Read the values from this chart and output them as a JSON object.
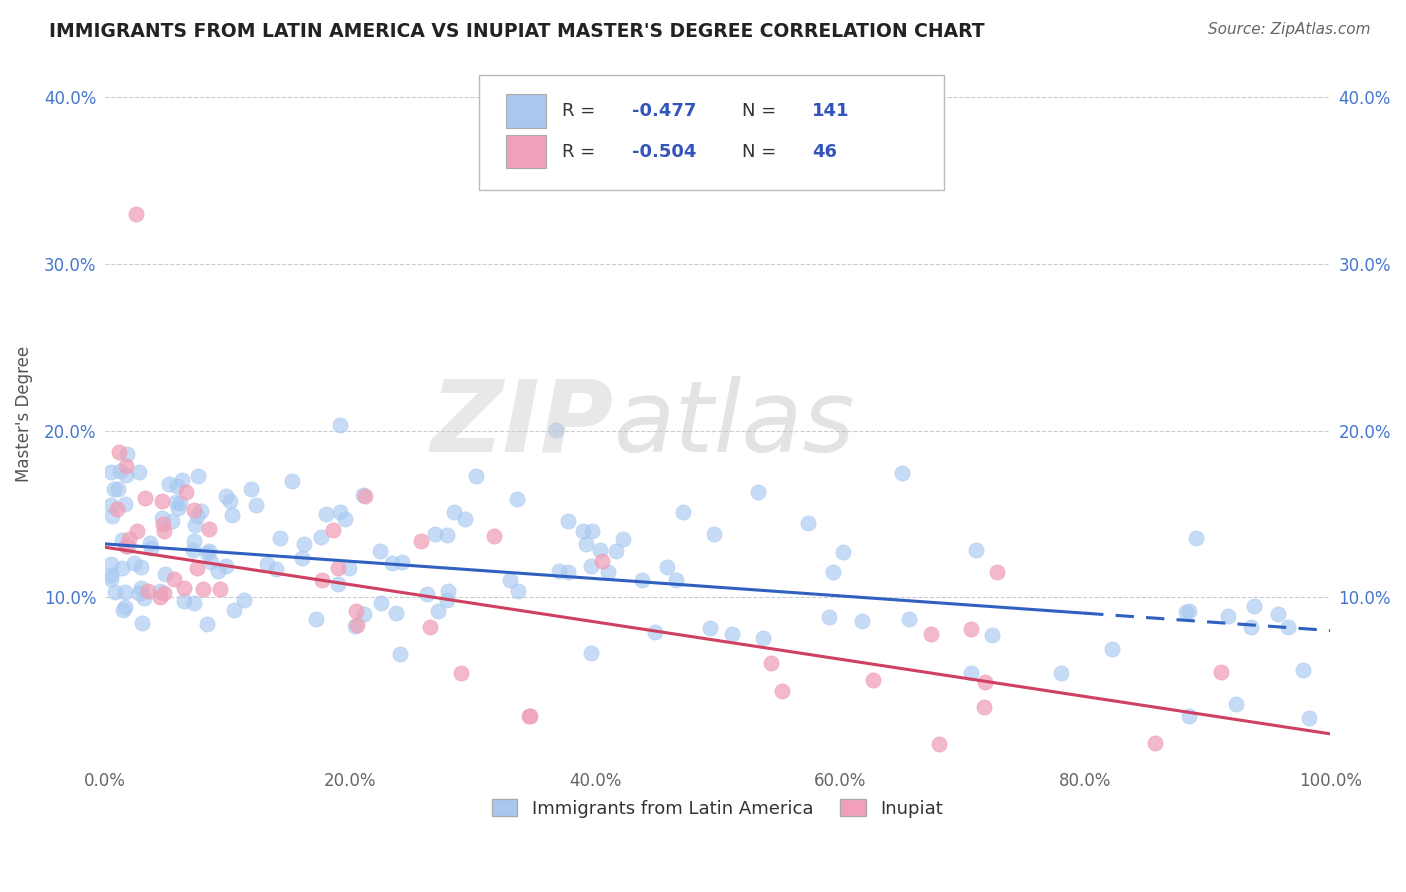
{
  "title": "IMMIGRANTS FROM LATIN AMERICA VS INUPIAT MASTER'S DEGREE CORRELATION CHART",
  "source_text": "Source: ZipAtlas.com",
  "ylabel": "Master's Degree",
  "xlim": [
    0,
    100
  ],
  "ylim": [
    0,
    42
  ],
  "yticks": [
    0,
    10,
    20,
    30,
    40
  ],
  "ytick_labels": [
    "",
    "10.0%",
    "20.0%",
    "30.0%",
    "40.0%"
  ],
  "xticks": [
    0,
    20,
    40,
    60,
    80,
    100
  ],
  "xtick_labels": [
    "0.0%",
    "20.0%",
    "40.0%",
    "60.0%",
    "80.0%",
    "100.0%"
  ],
  "blue_color": "#A8C8F0",
  "pink_color": "#F0A0B8",
  "blue_line_color": "#3060C0",
  "pink_line_color": "#D04060",
  "R_blue": -0.477,
  "N_blue": 141,
  "R_pink": -0.504,
  "N_pink": 46,
  "blue_intercept": 13.2,
  "blue_slope": -0.052,
  "blue_dash_start": 80,
  "pink_intercept": 13.0,
  "pink_slope": -0.112,
  "background_color": "#FFFFFF",
  "grid_color": "#CCCCCC",
  "title_color": "#222222",
  "legend_text_blue": "Immigrants from Latin America",
  "legend_text_pink": "Inupiat",
  "seed": 42
}
